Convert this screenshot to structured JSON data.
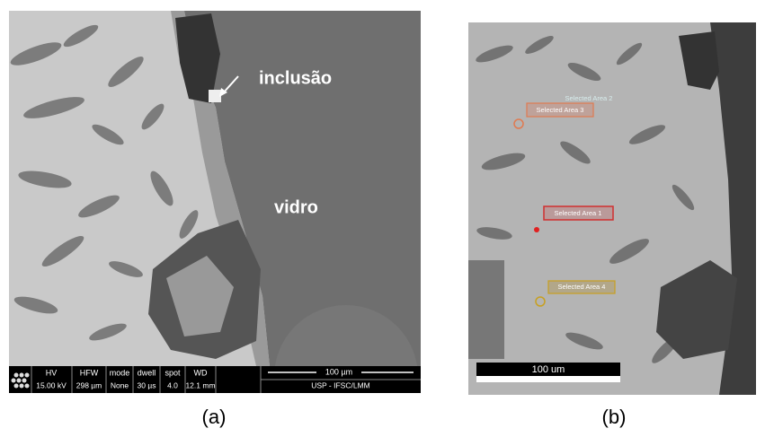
{
  "panels": [
    {
      "label": "(a)",
      "annotations": [
        "inclusão",
        "vidro"
      ],
      "info_bar": {
        "headers": [
          "HV",
          "HFW",
          "mode",
          "dwell",
          "spot",
          "WD"
        ],
        "values": [
          "15.00 kV",
          "298 µm",
          "None",
          "30 µs",
          "4.0",
          "12.1 mm"
        ],
        "scale": "100 µm",
        "credit": "USP - IFSC/LMM"
      }
    },
    {
      "label": "(b)",
      "areas": [
        "Selected Area 2",
        "Selected Area 3",
        "Selected Area 1",
        "Selected Area 4"
      ],
      "scale": "100 um"
    }
  ]
}
